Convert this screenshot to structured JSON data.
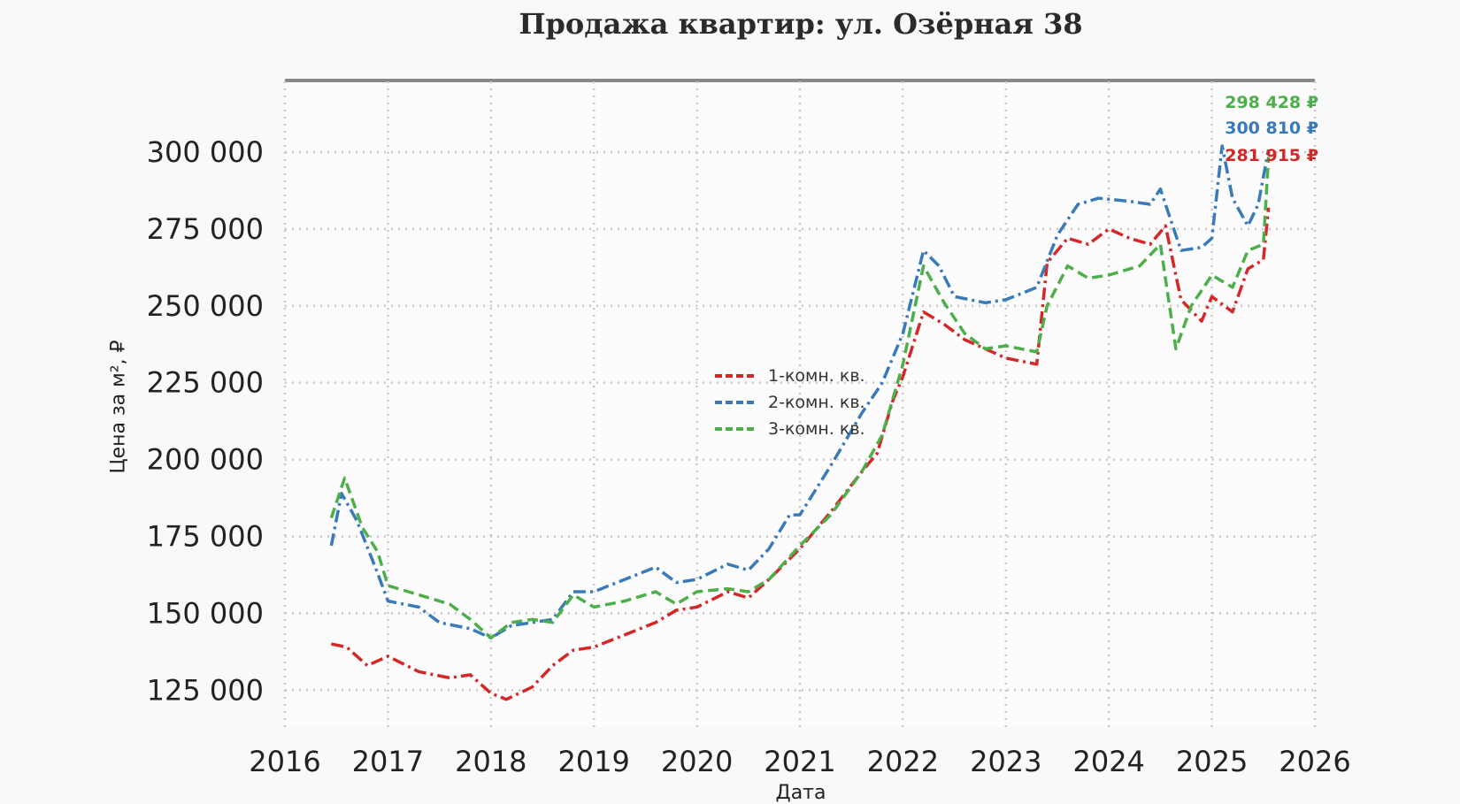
{
  "chart_data": {
    "type": "line",
    "title": "Продажа квартир: ул. Озёрная 38",
    "xlabel": "Дата",
    "ylabel": "Цена за м², ₽",
    "xlim": [
      2016,
      2026
    ],
    "ylim": [
      113000,
      323000
    ],
    "x_ticks": [
      "2016",
      "2017",
      "2018",
      "2019",
      "2020",
      "2021",
      "2022",
      "2023",
      "2024",
      "2025",
      "2026"
    ],
    "y_ticks": [
      {
        "value": 125000,
        "label": "125 000"
      },
      {
        "value": 150000,
        "label": "150 000"
      },
      {
        "value": 175000,
        "label": "175 000"
      },
      {
        "value": 200000,
        "label": "200 000"
      },
      {
        "value": 225000,
        "label": "225 000"
      },
      {
        "value": 250000,
        "label": "250 000"
      },
      {
        "value": 275000,
        "label": "275 000"
      },
      {
        "value": 300000,
        "label": "300 000"
      }
    ],
    "grid": true,
    "legend_position": "center",
    "series": [
      {
        "name": "1-комн. кв.",
        "color": "#d62728",
        "style": "dashdot",
        "end_label": "281 915 ₽",
        "x": [
          2016.45,
          2016.6,
          2016.8,
          2017.0,
          2017.3,
          2017.6,
          2017.8,
          2018.0,
          2018.15,
          2018.4,
          2018.6,
          2018.8,
          2019.0,
          2019.3,
          2019.6,
          2019.8,
          2020.0,
          2020.3,
          2020.5,
          2020.7,
          2021.0,
          2021.3,
          2021.6,
          2021.75,
          2021.9,
          2022.0,
          2022.2,
          2022.4,
          2022.6,
          2022.8,
          2023.0,
          2023.3,
          2023.4,
          2023.6,
          2023.8,
          2024.0,
          2024.2,
          2024.4,
          2024.55,
          2024.7,
          2024.9,
          2025.0,
          2025.2,
          2025.35,
          2025.5,
          2025.55
        ],
        "y": [
          140000,
          139000,
          133000,
          136000,
          131000,
          129000,
          130000,
          124000,
          122000,
          126000,
          133000,
          138000,
          139000,
          143000,
          147000,
          151000,
          152000,
          157000,
          155000,
          161000,
          171000,
          183000,
          196000,
          202000,
          219000,
          227000,
          248000,
          244000,
          239000,
          236000,
          233000,
          231000,
          264000,
          272000,
          270000,
          275000,
          272000,
          270000,
          276000,
          252000,
          245000,
          253000,
          248000,
          262000,
          265000,
          281915
        ]
      },
      {
        "name": "2-комн. кв.",
        "color": "#3a7ab8",
        "style": "dashdot",
        "end_label": "300 810 ₽",
        "x": [
          2016.45,
          2016.55,
          2016.7,
          2016.9,
          2017.0,
          2017.3,
          2017.5,
          2017.8,
          2018.0,
          2018.2,
          2018.4,
          2018.6,
          2018.8,
          2019.0,
          2019.3,
          2019.6,
          2019.8,
          2020.0,
          2020.3,
          2020.5,
          2020.7,
          2020.9,
          2021.0,
          2021.3,
          2021.6,
          2021.8,
          2022.0,
          2022.2,
          2022.35,
          2022.5,
          2022.8,
          2023.0,
          2023.3,
          2023.5,
          2023.7,
          2023.9,
          2024.2,
          2024.4,
          2024.5,
          2024.7,
          2024.9,
          2025.0,
          2025.1,
          2025.2,
          2025.35,
          2025.45,
          2025.55
        ],
        "y": [
          172000,
          189000,
          180000,
          163000,
          154000,
          152000,
          147000,
          145000,
          142000,
          146000,
          147000,
          148000,
          157000,
          157000,
          161000,
          165000,
          160000,
          161000,
          166000,
          164000,
          171000,
          182000,
          182000,
          198000,
          215000,
          225000,
          241000,
          268000,
          263000,
          253000,
          251000,
          252000,
          256000,
          273000,
          283000,
          285000,
          284000,
          283000,
          288000,
          268000,
          269000,
          272000,
          302000,
          285000,
          276000,
          283000,
          300810
        ]
      },
      {
        "name": "3-комн. кв.",
        "color": "#4daf4a",
        "style": "dashed",
        "end_label": "298 428 ₽",
        "x": [
          2016.45,
          2016.58,
          2016.75,
          2016.9,
          2017.0,
          2017.3,
          2017.6,
          2017.8,
          2018.0,
          2018.2,
          2018.4,
          2018.6,
          2018.8,
          2019.0,
          2019.3,
          2019.6,
          2019.8,
          2020.0,
          2020.3,
          2020.5,
          2020.7,
          2021.0,
          2021.3,
          2021.6,
          2021.8,
          2022.0,
          2022.2,
          2022.4,
          2022.6,
          2022.8,
          2023.0,
          2023.3,
          2023.4,
          2023.6,
          2023.8,
          2024.0,
          2024.3,
          2024.5,
          2024.65,
          2024.8,
          2025.0,
          2025.2,
          2025.35,
          2025.5,
          2025.55
        ],
        "y": [
          181000,
          194000,
          178000,
          170000,
          159000,
          156000,
          153000,
          148000,
          142000,
          147000,
          148000,
          147000,
          156000,
          152000,
          154000,
          157000,
          153000,
          157000,
          158000,
          157000,
          161000,
          172000,
          182000,
          196000,
          208000,
          231000,
          263000,
          251000,
          241000,
          236000,
          237000,
          235000,
          250000,
          263000,
          259000,
          260000,
          263000,
          270000,
          236000,
          250000,
          260000,
          256000,
          268000,
          270000,
          298428
        ]
      }
    ]
  }
}
